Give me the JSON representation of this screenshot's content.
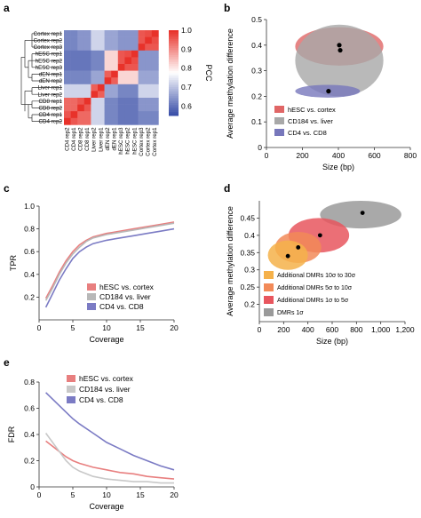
{
  "panel_labels": [
    "a",
    "b",
    "c",
    "d",
    "e"
  ],
  "chart_data": [
    {
      "panel": "a",
      "type": "heatmap",
      "row_labels": [
        "Cortex rep1",
        "Cortex rep2",
        "Cortex rep3",
        "hESC rep1",
        "hESC rep2",
        "hESC rep3",
        "dEN rep1",
        "dEN rep2",
        "Liver rep1",
        "Liver rep2",
        "CD8 rep1",
        "CD8 rep2",
        "CD4 rep1",
        "CD4 rep2"
      ],
      "col_labels": [
        "CD4 rep2",
        "CD4 rep1",
        "CD8 rep2",
        "CD8 rep1",
        "Liver rep2",
        "Liver rep1",
        "dEN rep2",
        "dEN rep1",
        "hESC rep3",
        "hESC rep2",
        "hESC rep1",
        "Cortex rep3",
        "Cortex rep2",
        "Cortex rep1"
      ],
      "values": [
        [
          0.62,
          0.62,
          0.64,
          0.64,
          0.72,
          0.72,
          0.66,
          0.66,
          0.64,
          0.64,
          0.64,
          0.96,
          0.97,
          1.0
        ],
        [
          0.62,
          0.62,
          0.64,
          0.64,
          0.72,
          0.72,
          0.66,
          0.66,
          0.64,
          0.64,
          0.64,
          0.96,
          1.0,
          0.97
        ],
        [
          0.62,
          0.62,
          0.64,
          0.64,
          0.72,
          0.72,
          0.66,
          0.66,
          0.64,
          0.64,
          0.64,
          1.0,
          0.96,
          0.96
        ],
        [
          0.6,
          0.6,
          0.6,
          0.6,
          0.62,
          0.62,
          0.82,
          0.82,
          0.96,
          0.97,
          1.0,
          0.64,
          0.64,
          0.64
        ],
        [
          0.6,
          0.6,
          0.6,
          0.6,
          0.62,
          0.62,
          0.82,
          0.82,
          0.96,
          1.0,
          0.97,
          0.64,
          0.64,
          0.64
        ],
        [
          0.6,
          0.6,
          0.6,
          0.6,
          0.62,
          0.62,
          0.82,
          0.82,
          1.0,
          0.96,
          0.96,
          0.64,
          0.64,
          0.64
        ],
        [
          0.62,
          0.62,
          0.62,
          0.62,
          0.66,
          0.66,
          0.95,
          1.0,
          0.82,
          0.82,
          0.82,
          0.66,
          0.66,
          0.66
        ],
        [
          0.62,
          0.62,
          0.62,
          0.62,
          0.66,
          0.66,
          1.0,
          0.95,
          0.82,
          0.82,
          0.82,
          0.66,
          0.66,
          0.66
        ],
        [
          0.72,
          0.72,
          0.72,
          0.72,
          0.95,
          1.0,
          0.66,
          0.66,
          0.62,
          0.62,
          0.62,
          0.72,
          0.72,
          0.72
        ],
        [
          0.72,
          0.72,
          0.72,
          0.72,
          1.0,
          0.95,
          0.66,
          0.66,
          0.62,
          0.62,
          0.62,
          0.72,
          0.72,
          0.72
        ],
        [
          0.94,
          0.94,
          0.96,
          1.0,
          0.72,
          0.72,
          0.62,
          0.62,
          0.6,
          0.6,
          0.6,
          0.64,
          0.64,
          0.64
        ],
        [
          0.94,
          0.94,
          1.0,
          0.96,
          0.72,
          0.72,
          0.62,
          0.62,
          0.6,
          0.6,
          0.6,
          0.64,
          0.64,
          0.64
        ],
        [
          0.96,
          1.0,
          0.94,
          0.94,
          0.72,
          0.72,
          0.62,
          0.62,
          0.6,
          0.6,
          0.6,
          0.62,
          0.62,
          0.62
        ],
        [
          1.0,
          0.96,
          0.94,
          0.94,
          0.72,
          0.72,
          0.62,
          0.62,
          0.6,
          0.6,
          0.6,
          0.62,
          0.62,
          0.62
        ]
      ],
      "colorbar": {
        "label": "PCC",
        "ticks": [
          "1.0",
          "0.9",
          "0.8",
          "0.7",
          "0.6"
        ],
        "range": [
          0.55,
          1.0
        ],
        "colors": [
          "#3a4fa8",
          "#ffffff",
          "#e8322a"
        ]
      }
    },
    {
      "panel": "b",
      "type": "scatter",
      "xlabel": "Size (bp)",
      "ylabel": "Average methylation difference",
      "xlim": [
        0,
        800
      ],
      "ylim": [
        0,
        0.5
      ],
      "xticks": [
        "0",
        "200",
        "400",
        "600",
        "800"
      ],
      "yticks": [
        "0",
        "0.1",
        "0.2",
        "0.3",
        "0.4",
        "0.5"
      ],
      "series": [
        {
          "name": "hESC vs. cortex",
          "color": "#e06666",
          "x": 405,
          "y": 0.4,
          "x_spread": [
            160,
            650
          ],
          "y_spread": [
            0.32,
            0.47
          ]
        },
        {
          "name": "CD184 vs. liver",
          "color": "#a8a8a8",
          "x": 410,
          "y": 0.38,
          "x_spread": [
            160,
            650
          ],
          "y_spread": [
            0.2,
            0.48
          ]
        },
        {
          "name": "CD4 vs. CD8",
          "color": "#7777bb",
          "x": 345,
          "y": 0.22,
          "x_spread": [
            160,
            520
          ],
          "y_spread": [
            0.195,
            0.245
          ]
        }
      ],
      "legend": "bottom-left"
    },
    {
      "panel": "c",
      "type": "line",
      "xlabel": "Coverage",
      "ylabel": "TPR",
      "xlim": [
        0,
        20
      ],
      "ylim": [
        0,
        1.0
      ],
      "xticks": [
        "0",
        "5",
        "10",
        "15",
        "20"
      ],
      "yticks": [
        "0.2",
        "0.4",
        "0.6",
        "0.8",
        "1.0"
      ],
      "x": [
        1,
        2,
        3,
        4,
        5,
        6,
        7,
        8,
        10,
        12,
        14,
        16,
        18,
        20
      ],
      "series": [
        {
          "name": "hESC vs. cortex",
          "color": "#e87f7f",
          "values": [
            0.19,
            0.3,
            0.42,
            0.52,
            0.6,
            0.66,
            0.7,
            0.73,
            0.76,
            0.78,
            0.8,
            0.82,
            0.84,
            0.86
          ]
        },
        {
          "name": "CD184 vs. liver",
          "color": "#b8b8b8",
          "values": [
            0.17,
            0.28,
            0.4,
            0.5,
            0.58,
            0.64,
            0.69,
            0.72,
            0.75,
            0.77,
            0.79,
            0.81,
            0.83,
            0.85
          ]
        },
        {
          "name": "CD4 vs. CD8",
          "color": "#7b7bc4",
          "values": [
            0.11,
            0.23,
            0.35,
            0.45,
            0.54,
            0.6,
            0.64,
            0.67,
            0.7,
            0.72,
            0.74,
            0.76,
            0.78,
            0.8
          ]
        }
      ],
      "legend": "bottom-right"
    },
    {
      "panel": "d",
      "type": "scatter",
      "xlabel": "Size (bp)",
      "ylabel": "Average methylation difference",
      "xlim": [
        0,
        1200
      ],
      "ylim": [
        0.15,
        0.5
      ],
      "xticks": [
        "0",
        "200",
        "400",
        "600",
        "800",
        "1,000",
        "1,200"
      ],
      "yticks": [
        "0.2",
        "0.25",
        "0.3",
        "0.35",
        "0.4",
        "0.45"
      ],
      "series": [
        {
          "name": "Additional DMRs 10σ to 30σ",
          "color": "#f5b14a",
          "x": 235,
          "y": 0.34,
          "x_spread": [
            70,
            400
          ],
          "y_spread": [
            0.3,
            0.385
          ]
        },
        {
          "name": "Additional DMRs 5σ to 10σ",
          "color": "#f28a58",
          "x": 320,
          "y": 0.365,
          "x_spread": [
            130,
            510
          ],
          "y_spread": [
            0.32,
            0.41
          ]
        },
        {
          "name": "Additional DMRs 1σ to 5σ",
          "color": "#e8565e",
          "x": 500,
          "y": 0.4,
          "x_spread": [
            240,
            740
          ],
          "y_spread": [
            0.35,
            0.45
          ]
        },
        {
          "name": "DMRs 1σ",
          "color": "#9a9a9a",
          "x": 850,
          "y": 0.465,
          "x_spread": [
            500,
            1170
          ],
          "y_spread": [
            0.42,
            0.5
          ]
        }
      ],
      "legend": "bottom-left"
    },
    {
      "panel": "e",
      "type": "line",
      "xlabel": "Coverage",
      "ylabel": "FDR",
      "xlim": [
        0,
        20
      ],
      "ylim": [
        0,
        0.8
      ],
      "xticks": [
        "0",
        "5",
        "10",
        "15",
        "20"
      ],
      "yticks": [
        "0",
        "0.2",
        "0.4",
        "0.6",
        "0.8"
      ],
      "x": [
        1,
        2,
        3,
        4,
        5,
        6,
        8,
        10,
        12,
        14,
        16,
        18,
        20
      ],
      "series": [
        {
          "name": "hESC vs. cortex",
          "color": "#e87f7f",
          "values": [
            0.35,
            0.31,
            0.27,
            0.23,
            0.2,
            0.18,
            0.15,
            0.13,
            0.11,
            0.1,
            0.08,
            0.07,
            0.06
          ]
        },
        {
          "name": "CD184 vs. liver",
          "color": "#c8c8c8",
          "values": [
            0.41,
            0.34,
            0.27,
            0.2,
            0.15,
            0.12,
            0.08,
            0.06,
            0.05,
            0.04,
            0.04,
            0.03,
            0.03
          ]
        },
        {
          "name": "CD4 vs. CD8",
          "color": "#7b7bc4",
          "values": [
            0.72,
            0.67,
            0.62,
            0.57,
            0.52,
            0.48,
            0.41,
            0.34,
            0.29,
            0.24,
            0.2,
            0.16,
            0.13
          ]
        }
      ],
      "legend": "top-right"
    }
  ]
}
